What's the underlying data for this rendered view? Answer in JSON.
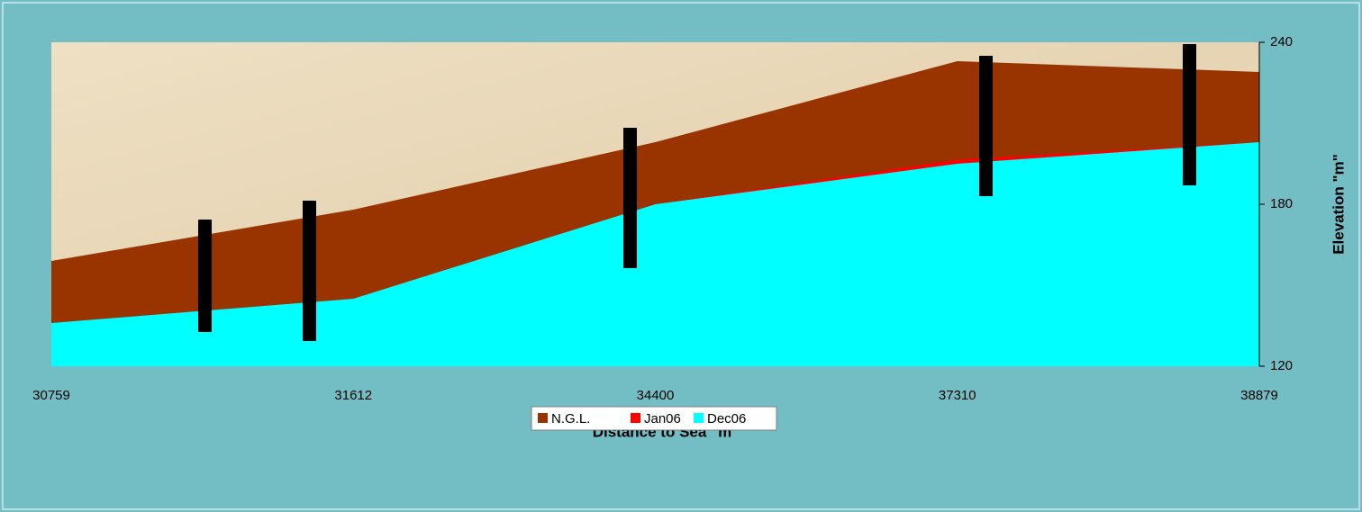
{
  "chart_data": {
    "type": "area",
    "x_label": "Distance to Sea \"m\"",
    "y_label": "Elevation \"m\"",
    "categories": [
      "30759",
      "31612",
      "34400",
      "37310",
      "38879"
    ],
    "series": [
      {
        "name": "N.G.L.",
        "color": "#993300",
        "values": [
          159,
          178,
          203,
          233,
          229
        ]
      },
      {
        "name": "Jan06",
        "color": "#ff0000",
        "values": [
          136,
          145,
          180,
          196.5,
          203
        ]
      },
      {
        "name": "Dec06",
        "color": "#00ffff",
        "values": [
          136,
          145,
          180,
          195,
          203
        ]
      }
    ],
    "ylim": [
      120,
      240
    ],
    "yticks": [
      120,
      180,
      240
    ],
    "y_axis_side": "right",
    "legend": "bottom"
  }
}
